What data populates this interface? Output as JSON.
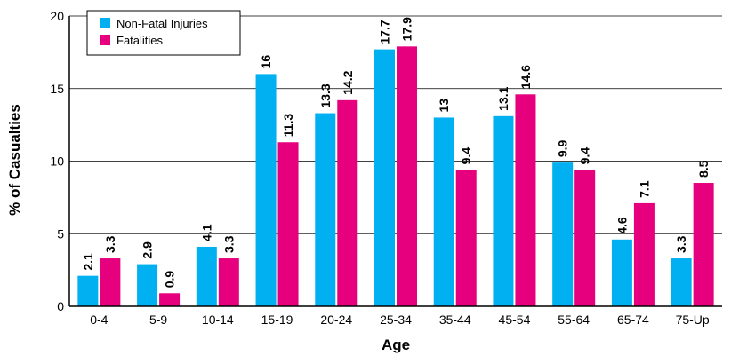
{
  "chart_data": {
    "type": "bar",
    "title": "",
    "xlabel": "Age",
    "ylabel": "% of Casualties",
    "ylim": [
      0,
      20
    ],
    "yticks": [
      0,
      5,
      10,
      15,
      20
    ],
    "grid": true,
    "legend_position": "top-left",
    "categories": [
      "0-4",
      "5-9",
      "10-14",
      "15-19",
      "20-24",
      "25-34",
      "35-44",
      "45-54",
      "55-64",
      "65-74",
      "75-Up"
    ],
    "series": [
      {
        "name": "Non-Fatal Injuries",
        "color": "#00B0F0",
        "values": [
          2.1,
          2.9,
          4.1,
          16,
          13.3,
          17.7,
          13,
          13.1,
          9.9,
          4.6,
          3.3
        ]
      },
      {
        "name": "Fatalities",
        "color": "#E6007E",
        "values": [
          3.3,
          0.9,
          3.3,
          11.3,
          14.2,
          17.9,
          9.4,
          14.6,
          9.4,
          7.1,
          8.5
        ]
      }
    ]
  }
}
